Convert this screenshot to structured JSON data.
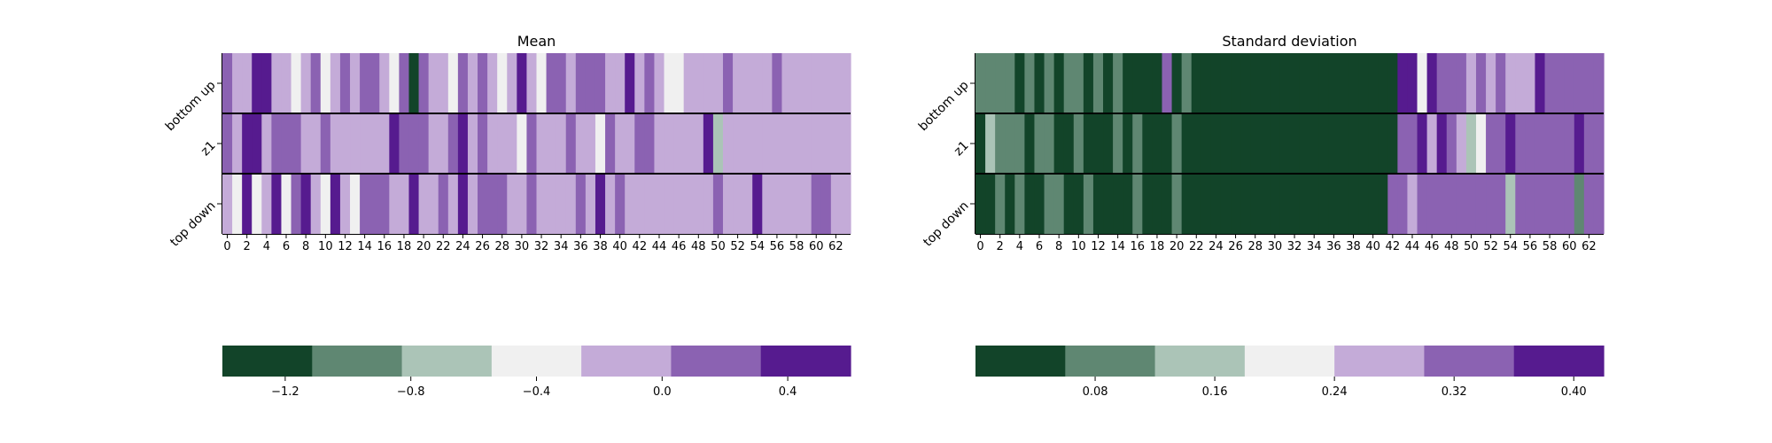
{
  "palette": [
    "#124429",
    "#5f8772",
    "#abc4b7",
    "#f0f0f0",
    "#c4abd8",
    "#8b62b2",
    "#561b8f"
  ],
  "chart_data": [
    {
      "type": "heatmap",
      "title": "Mean",
      "rows": [
        "bottom up",
        "z1",
        "top down"
      ],
      "x": [
        0,
        1,
        2,
        3,
        4,
        5,
        6,
        7,
        8,
        9,
        10,
        11,
        12,
        13,
        14,
        15,
        16,
        17,
        18,
        19,
        20,
        21,
        22,
        23,
        24,
        25,
        26,
        27,
        28,
        29,
        30,
        31,
        32,
        33,
        34,
        35,
        36,
        37,
        38,
        39,
        40,
        41,
        42,
        43,
        44,
        45,
        46,
        47,
        48,
        49,
        50,
        51,
        52,
        53,
        54,
        55,
        56,
        57,
        58,
        59,
        60,
        61,
        62,
        63
      ],
      "xticks": [
        "0",
        "2",
        "4",
        "6",
        "8",
        "10",
        "12",
        "14",
        "16",
        "18",
        "20",
        "22",
        "24",
        "26",
        "28",
        "30",
        "32",
        "34",
        "36",
        "38",
        "40",
        "42",
        "44",
        "46",
        "48",
        "50",
        "52",
        "54",
        "56",
        "58",
        "60",
        "62"
      ],
      "cell_levels": [
        [
          5,
          4,
          4,
          6,
          6,
          4,
          4,
          3,
          4,
          5,
          3,
          4,
          5,
          4,
          5,
          5,
          4,
          3,
          5,
          0,
          5,
          4,
          4,
          3,
          5,
          4,
          5,
          4,
          3,
          4,
          6,
          4,
          3,
          5,
          5,
          4,
          5,
          5,
          5,
          4,
          4,
          6,
          4,
          5,
          4,
          3,
          3,
          4,
          4,
          4,
          4,
          5,
          4,
          4,
          4,
          4,
          5,
          4,
          4,
          4,
          4,
          4,
          4,
          4
        ],
        [
          5,
          4,
          6,
          6,
          4,
          5,
          5,
          5,
          4,
          4,
          5,
          4,
          4,
          4,
          4,
          4,
          4,
          6,
          5,
          5,
          5,
          4,
          4,
          5,
          6,
          4,
          5,
          4,
          4,
          4,
          3,
          5,
          4,
          4,
          4,
          5,
          4,
          4,
          3,
          5,
          4,
          4,
          5,
          5,
          4,
          4,
          4,
          4,
          4,
          6,
          2,
          4,
          4,
          4,
          4,
          4,
          4,
          4,
          4,
          4,
          4,
          4,
          4,
          4
        ],
        [
          4,
          3,
          6,
          3,
          4,
          6,
          3,
          5,
          6,
          4,
          3,
          6,
          4,
          3,
          5,
          5,
          5,
          4,
          4,
          6,
          4,
          4,
          5,
          4,
          6,
          4,
          5,
          5,
          5,
          4,
          4,
          5,
          4,
          4,
          4,
          4,
          5,
          4,
          6,
          4,
          5,
          4,
          4,
          4,
          4,
          4,
          4,
          4,
          4,
          4,
          5,
          4,
          4,
          4,
          6,
          4,
          4,
          4,
          4,
          4,
          5,
          5,
          4,
          4
        ]
      ],
      "colorbar": {
        "ticks": [
          "−1.2",
          "−0.8",
          "−0.4",
          "0.0",
          "0.4"
        ],
        "range": [
          -1.4,
          0.6
        ]
      }
    },
    {
      "type": "heatmap",
      "title": "Standard deviation",
      "rows": [
        "bottom up",
        "z1",
        "top down"
      ],
      "x": [
        0,
        1,
        2,
        3,
        4,
        5,
        6,
        7,
        8,
        9,
        10,
        11,
        12,
        13,
        14,
        15,
        16,
        17,
        18,
        19,
        20,
        21,
        22,
        23,
        24,
        25,
        26,
        27,
        28,
        29,
        30,
        31,
        32,
        33,
        34,
        35,
        36,
        37,
        38,
        39,
        40,
        41,
        42,
        43,
        44,
        45,
        46,
        47,
        48,
        49,
        50,
        51,
        52,
        53,
        54,
        55,
        56,
        57,
        58,
        59,
        60,
        61,
        62,
        63
      ],
      "xticks": [
        "0",
        "2",
        "4",
        "6",
        "8",
        "10",
        "12",
        "14",
        "16",
        "18",
        "20",
        "22",
        "24",
        "26",
        "28",
        "30",
        "32",
        "34",
        "36",
        "38",
        "40",
        "42",
        "44",
        "46",
        "48",
        "50",
        "52",
        "54",
        "56",
        "58",
        "60",
        "62"
      ],
      "cell_levels": [
        [
          1,
          1,
          1,
          1,
          0,
          1,
          0,
          1,
          0,
          1,
          1,
          0,
          1,
          0,
          1,
          0,
          0,
          0,
          0,
          5,
          0,
          1,
          0,
          0,
          0,
          0,
          0,
          0,
          0,
          0,
          0,
          0,
          0,
          0,
          0,
          0,
          0,
          0,
          0,
          0,
          0,
          0,
          0,
          6,
          6,
          3,
          6,
          5,
          5,
          5,
          4,
          5,
          4,
          5,
          4,
          4,
          4,
          6,
          5,
          5,
          5,
          5,
          5,
          5
        ],
        [
          0,
          2,
          1,
          1,
          1,
          0,
          1,
          1,
          0,
          0,
          1,
          0,
          0,
          0,
          1,
          0,
          1,
          0,
          0,
          0,
          1,
          0,
          0,
          0,
          0,
          0,
          0,
          0,
          0,
          0,
          0,
          0,
          0,
          0,
          0,
          0,
          0,
          0,
          0,
          0,
          0,
          0,
          0,
          5,
          5,
          6,
          4,
          6,
          5,
          4,
          2,
          3,
          5,
          5,
          6,
          5,
          5,
          5,
          5,
          5,
          5,
          6,
          5,
          5
        ],
        [
          0,
          0,
          1,
          0,
          1,
          0,
          0,
          1,
          1,
          0,
          0,
          1,
          0,
          0,
          0,
          0,
          1,
          0,
          0,
          0,
          1,
          0,
          0,
          0,
          0,
          0,
          0,
          0,
          0,
          0,
          0,
          0,
          0,
          0,
          0,
          0,
          0,
          0,
          0,
          0,
          0,
          0,
          5,
          5,
          4,
          5,
          5,
          5,
          5,
          5,
          5,
          5,
          5,
          5,
          2,
          5,
          5,
          5,
          5,
          5,
          5,
          1,
          5,
          5
        ]
      ],
      "colorbar": {
        "ticks": [
          "0.08",
          "0.16",
          "0.24",
          "0.32",
          "0.40"
        ],
        "range": [
          0.0,
          0.42
        ]
      }
    }
  ]
}
